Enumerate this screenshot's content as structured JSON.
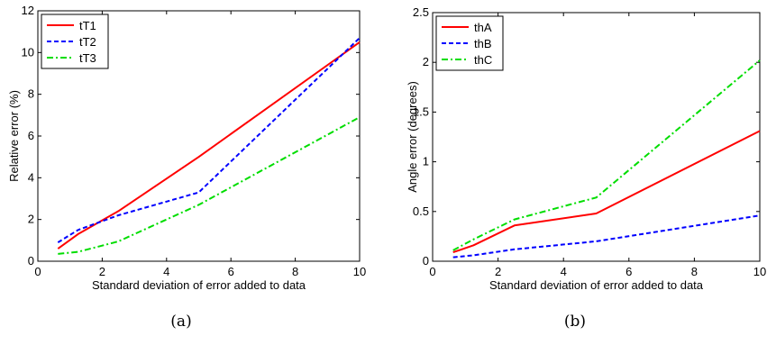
{
  "chart_data": [
    {
      "type": "line",
      "caption": "(a)",
      "xlabel": "Standard deviation of error added to data",
      "ylabel": "Relative error (%)",
      "xlim": [
        0,
        10
      ],
      "ylim": [
        0,
        12
      ],
      "xticks": [
        0,
        2,
        4,
        6,
        8,
        10
      ],
      "yticks": [
        0,
        2,
        4,
        6,
        8,
        10,
        12
      ],
      "grid": false,
      "legend_position": "top-left",
      "series": [
        {
          "name": "tT1",
          "color": "#ff0000",
          "dash": "solid",
          "x": [
            0.625,
            1.25,
            2.5,
            5,
            10
          ],
          "y": [
            0.6,
            1.3,
            2.4,
            5.0,
            10.5
          ]
        },
        {
          "name": "tT2",
          "color": "#0000ff",
          "dash": "dashed",
          "x": [
            0.625,
            1.25,
            2.5,
            5,
            10
          ],
          "y": [
            0.9,
            1.5,
            2.2,
            3.3,
            10.7
          ]
        },
        {
          "name": "tT3",
          "color": "#00dd00",
          "dash": "dashdot",
          "x": [
            0.625,
            1.25,
            2.5,
            5,
            10
          ],
          "y": [
            0.35,
            0.45,
            0.95,
            2.7,
            6.9
          ]
        }
      ]
    },
    {
      "type": "line",
      "caption": "(b)",
      "xlabel": "Standard deviation of error added to data",
      "ylabel": "Angle error (degrees)",
      "xlim": [
        0,
        10
      ],
      "ylim": [
        0,
        2.5
      ],
      "xticks": [
        0,
        2,
        4,
        6,
        8,
        10
      ],
      "yticks": [
        0,
        0.5,
        1,
        1.5,
        2,
        2.5
      ],
      "ytick_labels": [
        "0",
        "0.5",
        "1",
        "1.5",
        "2",
        "2.5"
      ],
      "grid": false,
      "legend_position": "top-left",
      "series": [
        {
          "name": "thA",
          "color": "#ff0000",
          "dash": "solid",
          "x": [
            0.625,
            1.25,
            2.5,
            5,
            10
          ],
          "y": [
            0.09,
            0.16,
            0.36,
            0.48,
            1.31
          ]
        },
        {
          "name": "thB",
          "color": "#0000ff",
          "dash": "dashed",
          "x": [
            0.625,
            1.25,
            2.5,
            5,
            10
          ],
          "y": [
            0.04,
            0.06,
            0.12,
            0.2,
            0.46
          ]
        },
        {
          "name": "thC",
          "color": "#00dd00",
          "dash": "dashdot",
          "x": [
            0.625,
            1.25,
            2.5,
            5,
            10
          ],
          "y": [
            0.11,
            0.22,
            0.42,
            0.64,
            2.02
          ]
        }
      ]
    }
  ]
}
